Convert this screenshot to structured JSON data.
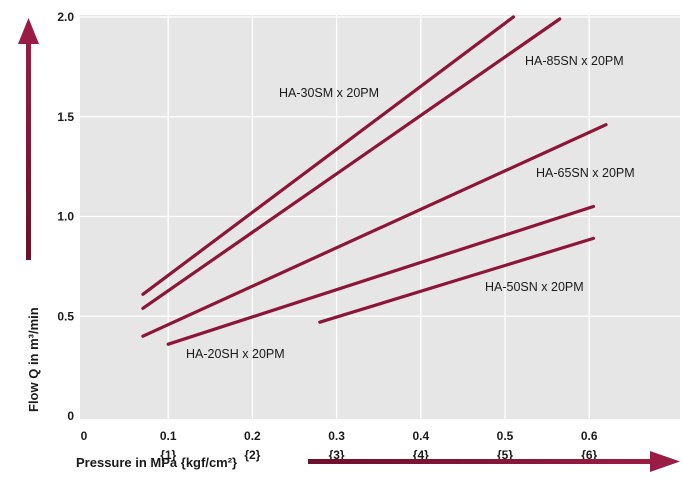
{
  "chart_data": {
    "type": "line",
    "xlabel": "Pressure in MPa {kgf/cm²}",
    "ylabel": "Flow Q in m³/min",
    "xlim": [
      0,
      0.7
    ],
    "ylim": [
      0,
      2.0
    ],
    "x_ticks": [
      {
        "value": 0,
        "label": "0",
        "sub": ""
      },
      {
        "value": 0.1,
        "label": "0.1",
        "sub": "{1}"
      },
      {
        "value": 0.2,
        "label": "0.2",
        "sub": "{2}"
      },
      {
        "value": 0.3,
        "label": "0.3",
        "sub": "{3}"
      },
      {
        "value": 0.4,
        "label": "0.4",
        "sub": "{4}"
      },
      {
        "value": 0.5,
        "label": "0.5",
        "sub": "{5}"
      },
      {
        "value": 0.6,
        "label": "0.6",
        "sub": "{6}"
      }
    ],
    "y_ticks": [
      {
        "value": 0,
        "label": "0"
      },
      {
        "value": 0.5,
        "label": "0.5"
      },
      {
        "value": 1.0,
        "label": "1.0"
      },
      {
        "value": 1.5,
        "label": "1.5"
      },
      {
        "value": 2.0,
        "label": "2.0"
      }
    ],
    "grid": true,
    "colors": {
      "plot_bg": "#e6e6e6",
      "grid": "#ffffff",
      "line": "#8c1538"
    },
    "series": [
      {
        "name": "HA-30SM x 20PM",
        "x": [
          0.07,
          0.51
        ],
        "y": [
          0.61,
          2.0
        ]
      },
      {
        "name": "HA-85SN x 20PM",
        "x": [
          0.07,
          0.565
        ],
        "y": [
          0.54,
          1.99
        ]
      },
      {
        "name": "HA-65SN x 20PM",
        "x": [
          0.07,
          0.62
        ],
        "y": [
          0.4,
          1.46
        ]
      },
      {
        "name": "HA-20SH x 20PM",
        "x": [
          0.1,
          0.605
        ],
        "y": [
          0.36,
          1.05
        ]
      },
      {
        "name": "HA-50SN x 20PM",
        "x": [
          0.28,
          0.605
        ],
        "y": [
          0.47,
          0.89
        ]
      }
    ]
  }
}
